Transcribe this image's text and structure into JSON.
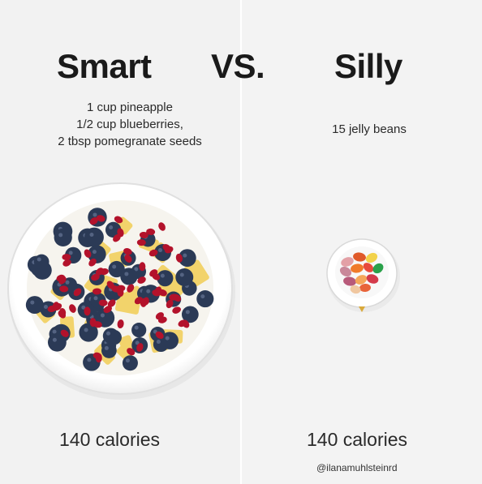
{
  "left": {
    "title": "Smart",
    "description": [
      "1 cup pineapple",
      "1/2 cup blueberries,",
      "2 tbsp pomegranate seeds"
    ],
    "calories": "140 calories"
  },
  "center": {
    "label": "VS."
  },
  "right": {
    "title": "Silly",
    "description": [
      "15 jelly beans"
    ],
    "calories": "140 calories"
  },
  "credit": "@ilanamuhlsteinrd",
  "colors": {
    "background": "#f2f2f2",
    "text": "#1a1a1a",
    "blueberry": "#2b3a56",
    "pineapple": "#f2d36b",
    "pomegranate": "#b3122b"
  }
}
